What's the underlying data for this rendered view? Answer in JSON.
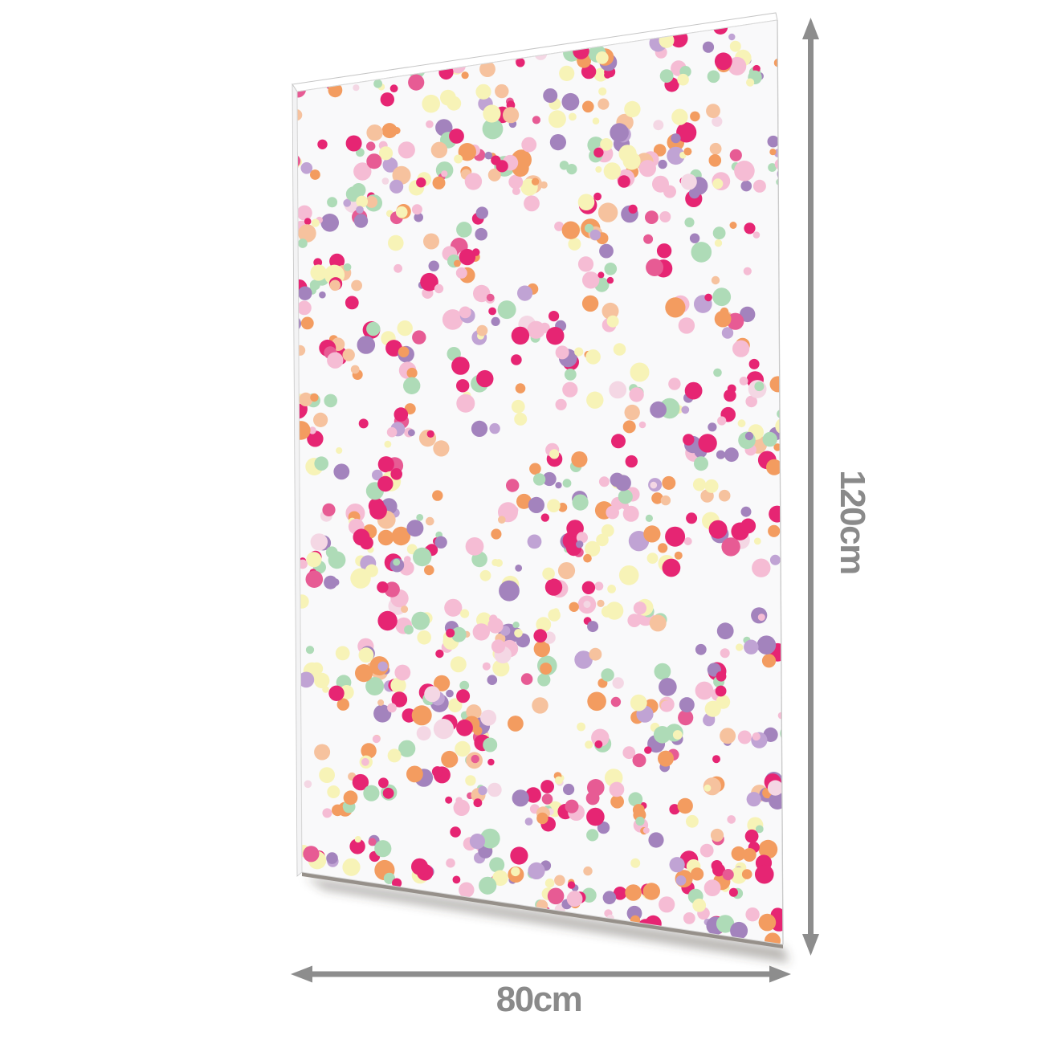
{
  "dimensions": {
    "height_label": "120cm",
    "width_label": "80cm"
  },
  "colors": {
    "dimension_arrow": "#8d8d8d",
    "dimension_label": "#8a8a8a",
    "panel_face": "#f9f9fa",
    "panel_edge_light": "#ffffff",
    "panel_edge_line": "#c6c6c6",
    "panel_edge_bottom": "#96908a",
    "panel_shadow": "rgba(70,64,58,0.38)"
  },
  "confetti_palette": [
    {
      "name": "hot-pink",
      "hex": "#e62573",
      "weight": 15
    },
    {
      "name": "rose-pink",
      "hex": "#e75b94",
      "weight": 6
    },
    {
      "name": "light-pink",
      "hex": "#f5bcd4",
      "weight": 14
    },
    {
      "name": "purple",
      "hex": "#a383bd",
      "weight": 13
    },
    {
      "name": "light-purple",
      "hex": "#c0a3d4",
      "weight": 5
    },
    {
      "name": "mint-green",
      "hex": "#aedbb7",
      "weight": 12
    },
    {
      "name": "orange",
      "hex": "#f39c60",
      "weight": 11
    },
    {
      "name": "pale-yellow",
      "hex": "#f7f3b7",
      "weight": 14
    },
    {
      "name": "peach",
      "hex": "#f6c29e",
      "weight": 6
    },
    {
      "name": "blush",
      "hex": "#f4d7e4",
      "weight": 4
    }
  ]
}
